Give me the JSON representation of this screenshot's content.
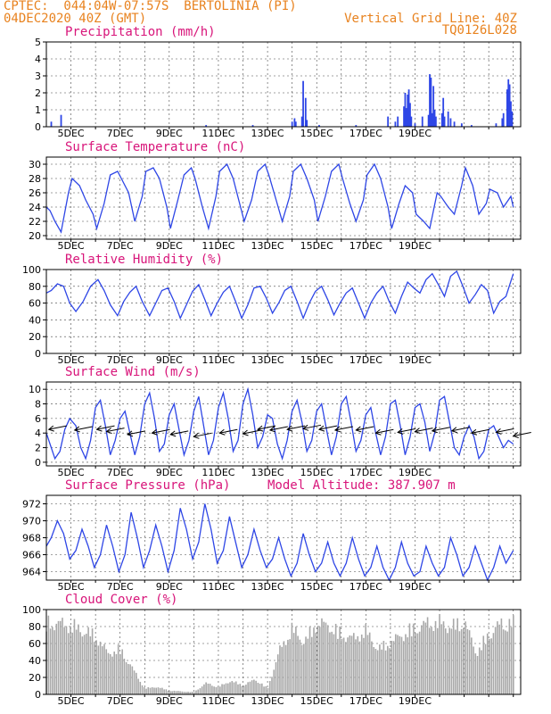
{
  "header": {
    "line1_left": "CPTEC:  044:04W-07:57S  BERTOLINIA (PI)",
    "line2_left": "04DEC2020 40Z (GMT)",
    "line1_right": "Vertical Grid Line: 40Z",
    "line2_right": "TQ0126L028"
  },
  "colors": {
    "header": "#e8821e",
    "title": "#d8157a",
    "series": "#2e46e6",
    "cloud": "#a8a8a8",
    "wind_arrow": "#000000"
  },
  "chart_data": [
    {
      "type": "bar",
      "title": "Precipitation (mm/h)",
      "ylim": [
        0,
        5
      ],
      "yticks": [
        0,
        1,
        2,
        3,
        4,
        5
      ],
      "xticks": [
        "5DEC",
        "7DEC",
        "9DEC",
        "11DEC",
        "13DEC",
        "15DEC",
        "17DEC",
        "19DEC"
      ],
      "x_unit": "days since 04DEC 00Z",
      "events": [
        {
          "x": 0.2,
          "y": 0.3
        },
        {
          "x": 0.6,
          "y": 0.7
        },
        {
          "x": 6.5,
          "y": 0.1
        },
        {
          "x": 8.4,
          "y": 0.1
        },
        {
          "x": 10.0,
          "y": 0.3
        },
        {
          "x": 10.1,
          "y": 0.5
        },
        {
          "x": 10.15,
          "y": 0.3
        },
        {
          "x": 10.4,
          "y": 0.6
        },
        {
          "x": 10.45,
          "y": 2.7
        },
        {
          "x": 10.55,
          "y": 1.7
        },
        {
          "x": 10.6,
          "y": 0.4
        },
        {
          "x": 11.1,
          "y": 0.1
        },
        {
          "x": 12.6,
          "y": 0.1
        },
        {
          "x": 13.9,
          "y": 0.6
        },
        {
          "x": 14.2,
          "y": 0.3
        },
        {
          "x": 14.3,
          "y": 0.6
        },
        {
          "x": 14.55,
          "y": 1.2
        },
        {
          "x": 14.6,
          "y": 2.0
        },
        {
          "x": 14.65,
          "y": 1.1
        },
        {
          "x": 14.7,
          "y": 1.9
        },
        {
          "x": 14.75,
          "y": 2.2
        },
        {
          "x": 14.8,
          "y": 1.4
        },
        {
          "x": 14.85,
          "y": 0.6
        },
        {
          "x": 15.0,
          "y": 0.2
        },
        {
          "x": 15.3,
          "y": 0.6
        },
        {
          "x": 15.55,
          "y": 0.7
        },
        {
          "x": 15.6,
          "y": 3.1
        },
        {
          "x": 15.65,
          "y": 2.9
        },
        {
          "x": 15.7,
          "y": 0.8
        },
        {
          "x": 15.75,
          "y": 2.4
        },
        {
          "x": 15.8,
          "y": 1.0
        },
        {
          "x": 15.85,
          "y": 0.6
        },
        {
          "x": 16.1,
          "y": 0.8
        },
        {
          "x": 16.15,
          "y": 1.7
        },
        {
          "x": 16.2,
          "y": 0.6
        },
        {
          "x": 16.35,
          "y": 0.9
        },
        {
          "x": 16.45,
          "y": 0.5
        },
        {
          "x": 16.6,
          "y": 0.3
        },
        {
          "x": 16.9,
          "y": 0.2
        },
        {
          "x": 17.3,
          "y": 0.1
        },
        {
          "x": 18.3,
          "y": 0.2
        },
        {
          "x": 18.55,
          "y": 0.5
        },
        {
          "x": 18.6,
          "y": 0.8
        },
        {
          "x": 18.75,
          "y": 2.2
        },
        {
          "x": 18.8,
          "y": 2.8
        },
        {
          "x": 18.85,
          "y": 2.5
        },
        {
          "x": 18.9,
          "y": 1.5
        },
        {
          "x": 18.95,
          "y": 0.9
        }
      ]
    },
    {
      "type": "line",
      "title": "Surface Temperature (nC)",
      "ylim": [
        19.5,
        31
      ],
      "yticks": [
        20,
        22,
        24,
        26,
        28,
        30
      ],
      "xticks": [
        "5DEC",
        "7DEC",
        "9DEC",
        "11DEC",
        "13DEC",
        "15DEC",
        "17DEC",
        "19DEC"
      ],
      "x": [
        0,
        0.15,
        0.35,
        0.6,
        0.9,
        1.05,
        1.35,
        1.6,
        1.9,
        2.05,
        2.35,
        2.6,
        2.9,
        3.05,
        3.35,
        3.6,
        3.9,
        4.05,
        4.35,
        4.6,
        4.9,
        5.05,
        5.35,
        5.6,
        5.9,
        6.05,
        6.35,
        6.6,
        6.9,
        7.05,
        7.35,
        7.6,
        7.9,
        8.05,
        8.35,
        8.6,
        8.9,
        9.05,
        9.35,
        9.6,
        9.9,
        10.05,
        10.35,
        10.6,
        10.9,
        11.05,
        11.35,
        11.6,
        11.9,
        12.05,
        12.35,
        12.6,
        12.9,
        13.05,
        13.35,
        13.6,
        13.9,
        14.05,
        14.35,
        14.6,
        14.9,
        15.05,
        15.35,
        15.6,
        15.9,
        16.05,
        16.35,
        16.6,
        16.9,
        17.05,
        17.35,
        17.6,
        17.9,
        18.05,
        18.35,
        18.6,
        18.9,
        19.0
      ],
      "y": [
        24.0,
        23.5,
        22.0,
        20.5,
        26.0,
        28.0,
        27.0,
        25.0,
        23.0,
        21.0,
        24.5,
        28.5,
        29.0,
        28.0,
        26.0,
        22.0,
        25.5,
        29.0,
        29.5,
        28.0,
        24.0,
        21.0,
        25.0,
        28.5,
        29.5,
        28.0,
        24.0,
        21.0,
        25.5,
        29.0,
        30.0,
        28.0,
        24.0,
        22.0,
        25.0,
        29.0,
        30.0,
        28.5,
        25.0,
        22.0,
        25.5,
        29.0,
        30.0,
        28.0,
        25.0,
        22.0,
        25.5,
        29.0,
        30.0,
        28.0,
        24.5,
        22.0,
        25.0,
        28.5,
        30.0,
        28.0,
        24.0,
        21.0,
        24.5,
        27.0,
        26.0,
        23.0,
        22.0,
        21.0,
        26.0,
        25.5,
        24.0,
        23.0,
        27.0,
        29.5,
        27.0,
        23.0,
        24.5,
        26.5,
        26.0,
        24.0,
        25.5,
        24.0
      ]
    },
    {
      "type": "line",
      "title": "Relative Humidity (%)",
      "ylim": [
        0,
        100
      ],
      "yticks": [
        0,
        20,
        40,
        60,
        80,
        100
      ],
      "xticks": [
        "5DEC",
        "7DEC",
        "9DEC",
        "11DEC",
        "13DEC",
        "15DEC",
        "17DEC",
        "19DEC"
      ],
      "x": [
        0,
        0.2,
        0.45,
        0.7,
        0.95,
        1.2,
        1.5,
        1.8,
        2.1,
        2.35,
        2.6,
        2.9,
        3.15,
        3.4,
        3.65,
        3.9,
        4.2,
        4.45,
        4.7,
        4.95,
        5.2,
        5.45,
        5.7,
        5.95,
        6.2,
        6.45,
        6.7,
        6.95,
        7.2,
        7.45,
        7.7,
        7.95,
        8.2,
        8.45,
        8.7,
        8.95,
        9.2,
        9.45,
        9.7,
        9.95,
        10.2,
        10.45,
        10.7,
        10.95,
        11.2,
        11.45,
        11.7,
        11.95,
        12.2,
        12.45,
        12.7,
        12.95,
        13.2,
        13.45,
        13.7,
        13.95,
        14.2,
        14.45,
        14.7,
        14.95,
        15.2,
        15.45,
        15.7,
        15.95,
        16.2,
        16.45,
        16.7,
        16.95,
        17.2,
        17.45,
        17.7,
        17.95,
        18.2,
        18.45,
        18.7,
        19.0
      ],
      "y": [
        72,
        75,
        83,
        80,
        60,
        50,
        62,
        80,
        88,
        75,
        58,
        45,
        62,
        73,
        80,
        62,
        45,
        60,
        75,
        78,
        62,
        42,
        58,
        74,
        82,
        64,
        45,
        60,
        73,
        80,
        62,
        42,
        58,
        78,
        80,
        66,
        48,
        60,
        75,
        80,
        62,
        42,
        60,
        74,
        80,
        64,
        46,
        60,
        72,
        78,
        60,
        42,
        60,
        72,
        80,
        62,
        48,
        68,
        85,
        78,
        72,
        88,
        95,
        82,
        68,
        92,
        98,
        80,
        60,
        70,
        82,
        75,
        48,
        62,
        68,
        95
      ]
    },
    {
      "type": "line",
      "title": "Surface Wind (m/s)",
      "ylim": [
        -0.5,
        11
      ],
      "yticks": [
        0,
        2,
        4,
        6,
        8,
        10
      ],
      "xticks": [
        "5DEC",
        "7DEC",
        "9DEC",
        "11DEC",
        "13DEC",
        "15DEC",
        "17DEC",
        "19DEC"
      ],
      "x": [
        0,
        0.15,
        0.35,
        0.55,
        0.75,
        0.95,
        1.2,
        1.4,
        1.6,
        1.8,
        2.0,
        2.2,
        2.4,
        2.6,
        2.8,
        3.0,
        3.2,
        3.4,
        3.6,
        3.8,
        4.0,
        4.2,
        4.4,
        4.6,
        4.8,
        5.0,
        5.2,
        5.4,
        5.6,
        5.8,
        6.0,
        6.2,
        6.4,
        6.6,
        6.8,
        7.0,
        7.2,
        7.4,
        7.6,
        7.8,
        8.0,
        8.2,
        8.4,
        8.6,
        8.8,
        9.0,
        9.2,
        9.4,
        9.6,
        9.8,
        10.0,
        10.2,
        10.4,
        10.6,
        10.8,
        11.0,
        11.2,
        11.4,
        11.6,
        11.8,
        12.0,
        12.2,
        12.4,
        12.6,
        12.8,
        13.0,
        13.2,
        13.4,
        13.6,
        13.8,
        14.0,
        14.2,
        14.4,
        14.6,
        14.8,
        15.0,
        15.2,
        15.4,
        15.6,
        15.8,
        16.0,
        16.2,
        16.4,
        16.6,
        16.8,
        17.0,
        17.2,
        17.4,
        17.6,
        17.8,
        18.0,
        18.2,
        18.4,
        18.6,
        18.8,
        19.0
      ],
      "y": [
        4.0,
        2.5,
        0.5,
        1.5,
        4.5,
        6.0,
        5.0,
        2.0,
        0.5,
        3.0,
        7.5,
        8.5,
        5.0,
        1.0,
        3.0,
        6.0,
        7.0,
        4.0,
        1.0,
        3.5,
        8.0,
        9.5,
        6.0,
        1.5,
        2.5,
        6.5,
        8.0,
        4.5,
        1.0,
        3.0,
        7.0,
        9.0,
        5.0,
        1.0,
        3.0,
        7.5,
        9.5,
        6.0,
        1.5,
        3.0,
        8.0,
        10.0,
        6.5,
        2.0,
        3.5,
        6.5,
        6.0,
        2.5,
        0.5,
        3.0,
        7.0,
        8.5,
        5.5,
        1.5,
        3.0,
        7.0,
        8.0,
        4.5,
        1.0,
        3.5,
        8.0,
        9.0,
        5.5,
        1.5,
        3.0,
        6.5,
        7.5,
        4.0,
        1.0,
        3.5,
        8.0,
        8.5,
        5.0,
        1.0,
        3.5,
        7.5,
        8.0,
        5.5,
        1.5,
        4.0,
        8.5,
        9.0,
        5.5,
        2.0,
        1.0,
        3.5,
        5.0,
        3.5,
        0.5,
        1.5,
        4.5,
        5.0,
        3.5,
        2.0,
        3.0,
        2.5
      ],
      "arrows_note": "wind direction arrows drawn along the series"
    },
    {
      "type": "line",
      "title": "Surface Pressure (hPa)",
      "subtitle": "Model Altitude: 387.907 m",
      "ylim": [
        963,
        973
      ],
      "yticks": [
        964,
        966,
        968,
        970,
        972
      ],
      "xticks": [
        "5DEC",
        "7DEC",
        "9DEC",
        "11DEC",
        "13DEC",
        "15DEC",
        "17DEC",
        "19DEC"
      ],
      "x": [
        0,
        0.2,
        0.45,
        0.7,
        0.95,
        1.2,
        1.45,
        1.7,
        1.95,
        2.2,
        2.45,
        2.7,
        2.95,
        3.2,
        3.45,
        3.7,
        3.95,
        4.2,
        4.45,
        4.7,
        4.95,
        5.2,
        5.45,
        5.7,
        5.95,
        6.2,
        6.45,
        6.7,
        6.95,
        7.2,
        7.45,
        7.7,
        7.95,
        8.2,
        8.45,
        8.7,
        8.95,
        9.2,
        9.45,
        9.7,
        9.95,
        10.2,
        10.45,
        10.7,
        10.95,
        11.2,
        11.45,
        11.7,
        11.95,
        12.2,
        12.45,
        12.7,
        12.95,
        13.2,
        13.45,
        13.7,
        13.95,
        14.2,
        14.45,
        14.7,
        14.95,
        15.2,
        15.45,
        15.7,
        15.95,
        16.2,
        16.45,
        16.7,
        16.95,
        17.2,
        17.45,
        17.7,
        17.95,
        18.2,
        18.45,
        18.7,
        19.0
      ],
      "y": [
        967.0,
        968.0,
        970.0,
        968.5,
        965.5,
        966.5,
        969.0,
        967.0,
        964.5,
        966.0,
        969.5,
        967.0,
        964.0,
        966.0,
        971.0,
        968.0,
        964.5,
        966.5,
        969.5,
        967.0,
        964.0,
        966.5,
        971.5,
        969.0,
        965.5,
        967.5,
        972.0,
        969.0,
        965.0,
        966.5,
        970.5,
        967.5,
        964.5,
        966.0,
        969.0,
        966.5,
        964.5,
        965.5,
        968.0,
        965.5,
        963.5,
        965.0,
        968.5,
        966.0,
        964.0,
        965.0,
        967.5,
        965.0,
        963.5,
        965.0,
        968.0,
        965.5,
        963.5,
        964.5,
        967.0,
        964.5,
        963.0,
        964.5,
        967.5,
        965.0,
        963.5,
        964.0,
        967.0,
        965.0,
        963.5,
        964.5,
        968.0,
        966.0,
        963.5,
        964.5,
        967.0,
        965.0,
        963.0,
        964.5,
        967.0,
        965.0,
        966.5
      ]
    },
    {
      "type": "bar",
      "title": "Cloud Cover (%)",
      "ylim": [
        0,
        100
      ],
      "yticks": [
        0,
        20,
        40,
        60,
        80,
        100
      ],
      "xticks": [
        "5DEC",
        "7DEC",
        "9DEC",
        "11DEC",
        "13DEC",
        "15DEC",
        "17DEC",
        "19DEC"
      ],
      "profile": {
        "x": [
          0,
          0.5,
          1.0,
          1.5,
          2.0,
          2.5,
          3.0,
          3.5,
          4.0,
          4.5,
          5.0,
          5.5,
          6.0,
          6.5,
          7.0,
          7.5,
          8.0,
          8.5,
          9.0,
          9.5,
          10.0,
          10.5,
          11.0,
          11.5,
          12.0,
          12.5,
          13.0,
          13.5,
          14.0,
          14.5,
          15.0,
          15.5,
          16.0,
          16.5,
          17.0,
          17.5,
          18.0,
          18.5,
          19.0
        ],
        "y": [
          95,
          95,
          92,
          85,
          78,
          55,
          60,
          35,
          8,
          10,
          5,
          4,
          3,
          15,
          10,
          18,
          12,
          20,
          8,
          60,
          88,
          70,
          95,
          92,
          80,
          75,
          85,
          60,
          70,
          80,
          88,
          95,
          96,
          90,
          98,
          55,
          80,
          95,
          95
        ]
      }
    }
  ]
}
